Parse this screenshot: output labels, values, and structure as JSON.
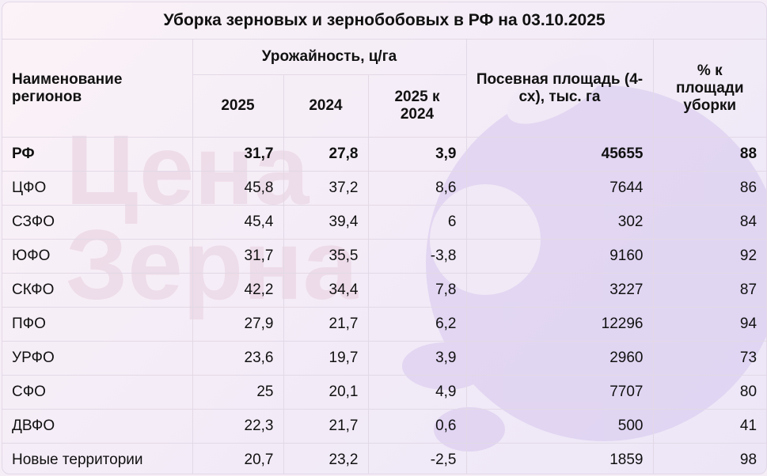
{
  "title": "Уборка зерновых и зернобобовых в РФ на 03.10.2025",
  "watermark": {
    "line1": "Цена",
    "line2": "Зерна"
  },
  "headers": {
    "region": "Наименование регионов",
    "yield_group": "Урожайность, ц/га",
    "y2025": "2025",
    "y2024": "2024",
    "diff": "2025 к 2024",
    "area": "Посевная площадь (4-сх), тыс. га",
    "pct": "% к площади уборки"
  },
  "rows": [
    {
      "region": "РФ",
      "y2025": "31,7",
      "y2024": "27,8",
      "diff": "3,9",
      "area": "45655",
      "pct": "88"
    },
    {
      "region": "ЦФО",
      "y2025": "45,8",
      "y2024": "37,2",
      "diff": "8,6",
      "area": "7644",
      "pct": "86"
    },
    {
      "region": "СЗФО",
      "y2025": "45,4",
      "y2024": "39,4",
      "diff": "6",
      "area": "302",
      "pct": "84"
    },
    {
      "region": "ЮФО",
      "y2025": "31,7",
      "y2024": "35,5",
      "diff": "-3,8",
      "area": "9160",
      "pct": "92"
    },
    {
      "region": "СКФО",
      "y2025": "42,2",
      "y2024": "34,4",
      "diff": "7,8",
      "area": "3227",
      "pct": "87"
    },
    {
      "region": "ПФО",
      "y2025": "27,9",
      "y2024": "21,7",
      "diff": "6,2",
      "area": "12296",
      "pct": "94"
    },
    {
      "region": "УРФО",
      "y2025": "23,6",
      "y2024": "19,7",
      "diff": "3,9",
      "area": "2960",
      "pct": "73"
    },
    {
      "region": "СФО",
      "y2025": "25",
      "y2024": "20,1",
      "diff": "4,9",
      "area": "7707",
      "pct": "80"
    },
    {
      "region": "ДВФО",
      "y2025": "22,3",
      "y2024": "21,7",
      "diff": "0,6",
      "area": "500",
      "pct": "41"
    },
    {
      "region": "Новые территории",
      "y2025": "20,7",
      "y2024": "23,2",
      "diff": "-2,5",
      "area": "1859",
      "pct": "98"
    }
  ]
}
